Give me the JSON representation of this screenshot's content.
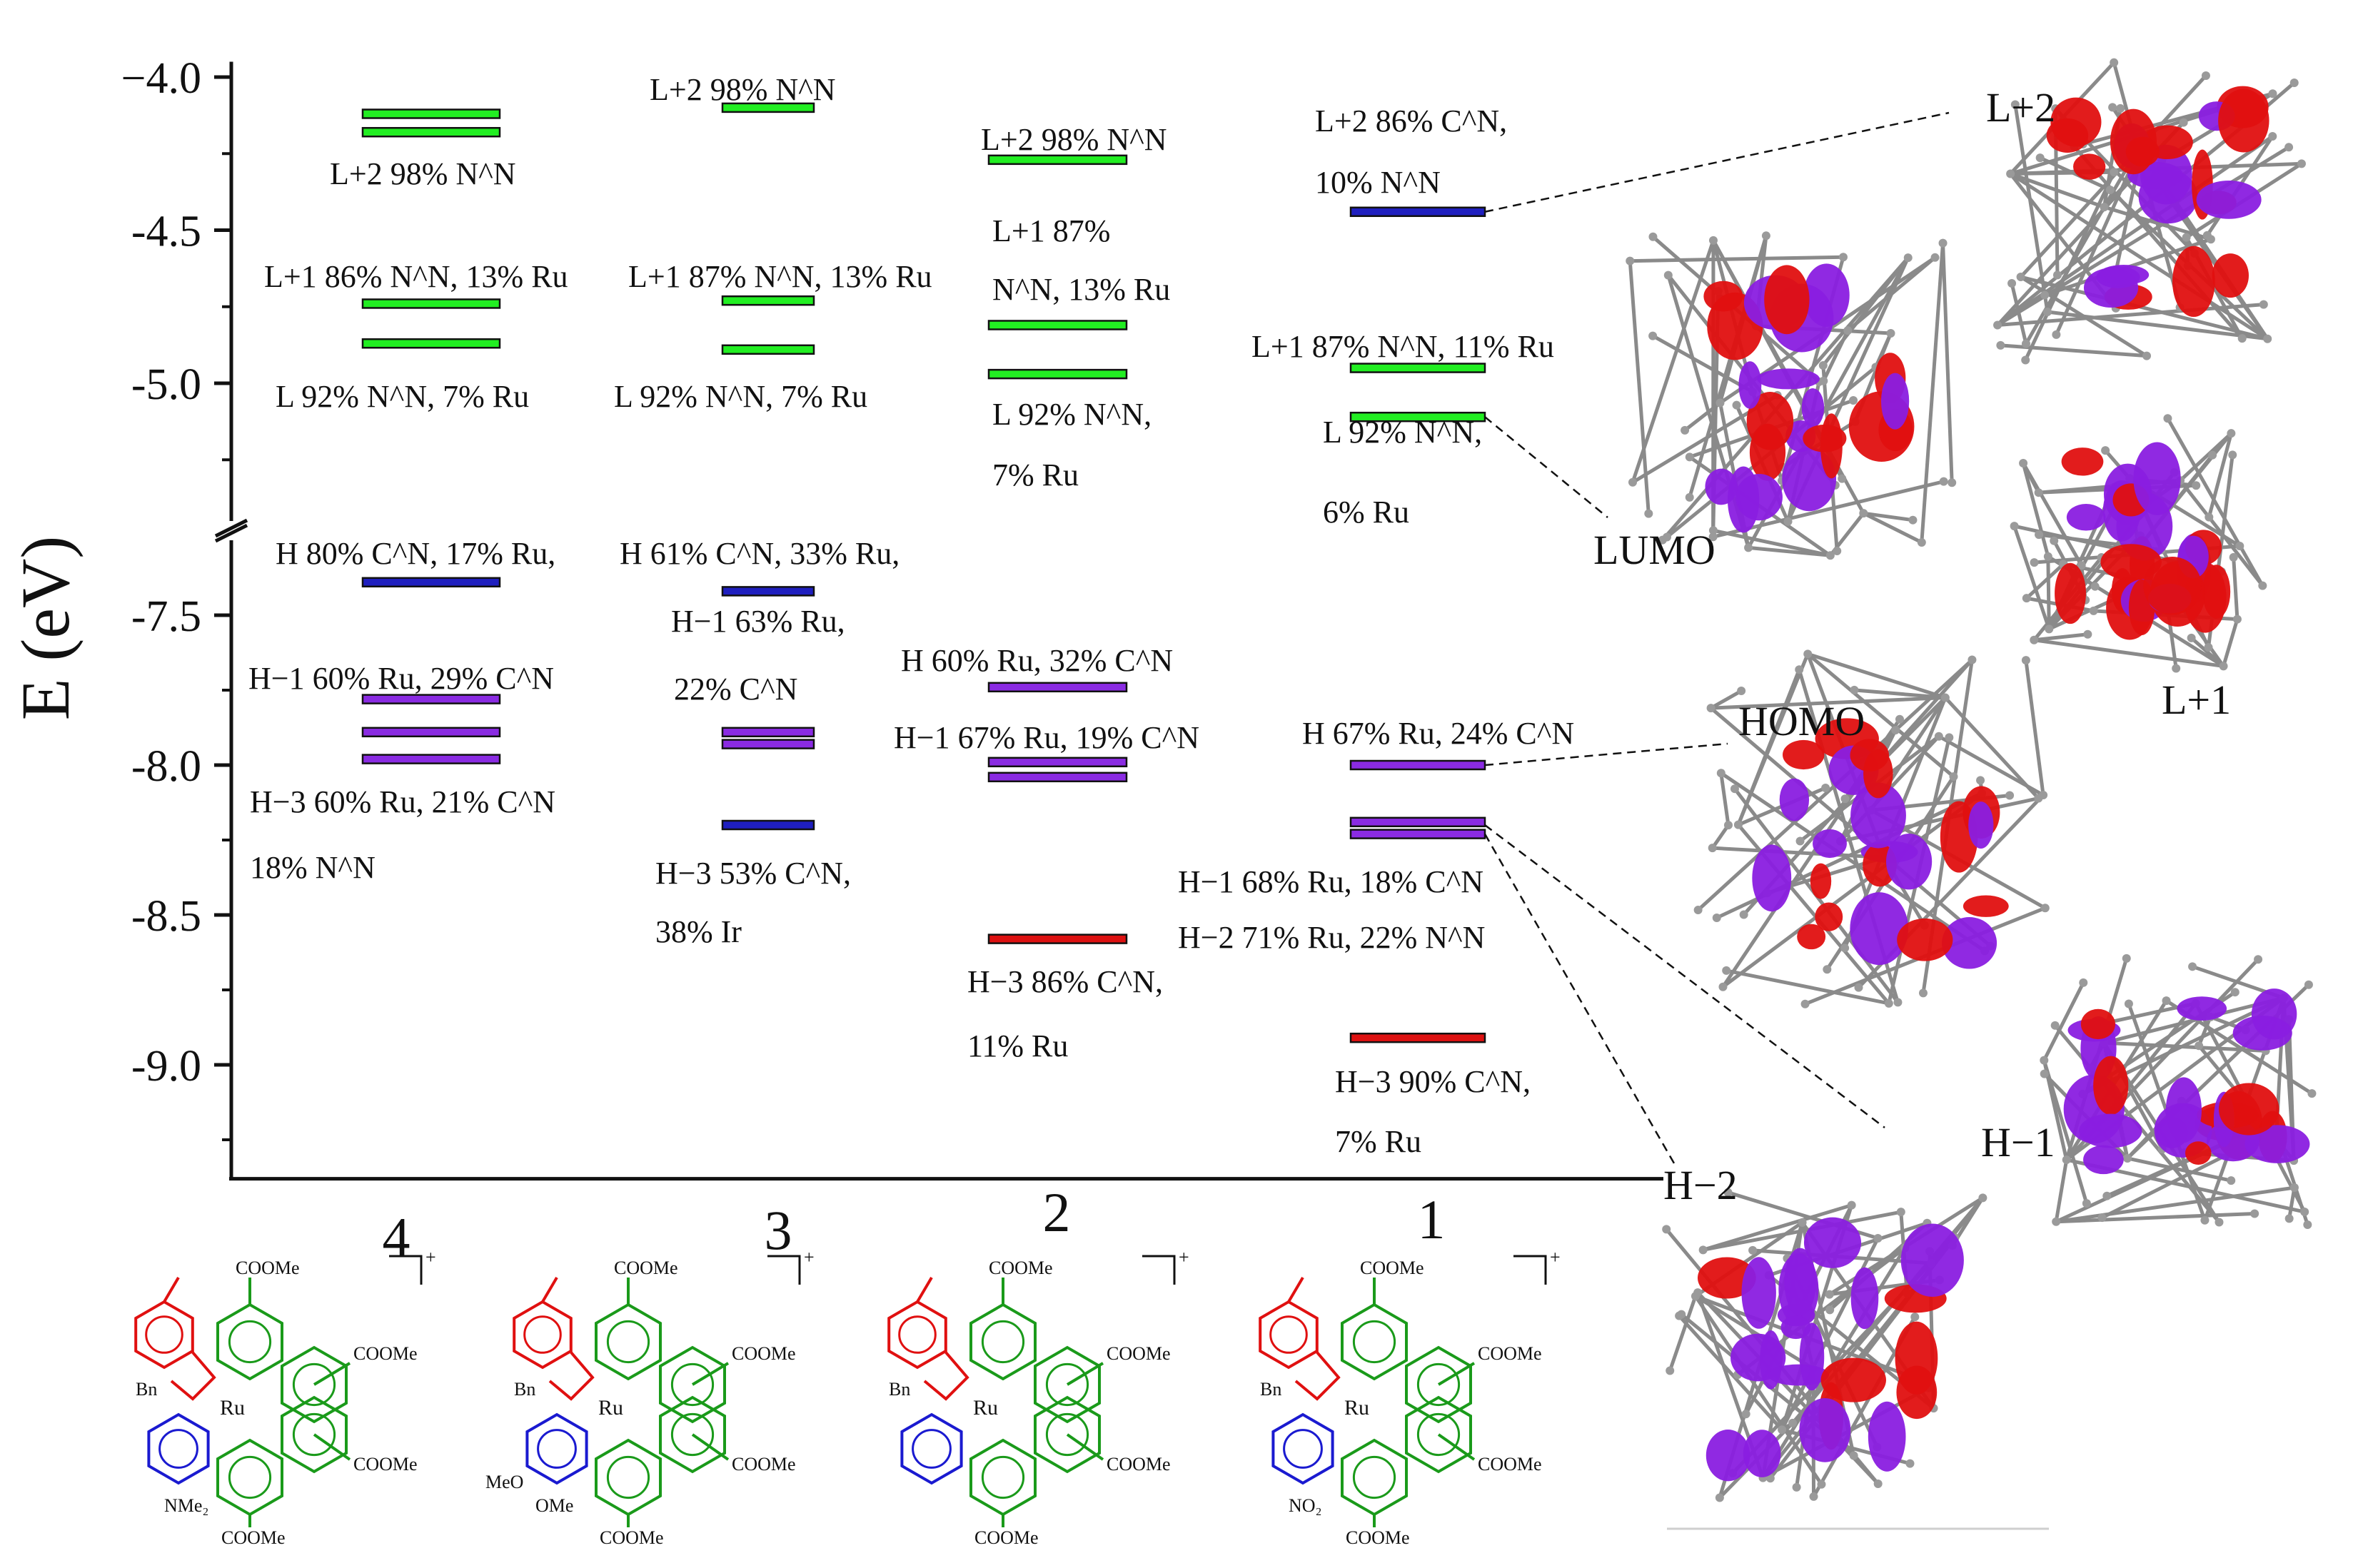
{
  "chart_data": {
    "type": "energy-level-diagram",
    "ylabel": "E (eV)",
    "ylim_upper": [
      -5.45,
      -3.95
    ],
    "ylim_lower": [
      -9.38,
      -7.25
    ],
    "y_axis_break": true,
    "yticks": [
      -4.0,
      -4.5,
      -5.0,
      -7.5,
      -8.0,
      -8.5,
      -9.0
    ],
    "ytick_labels": [
      "−4.0",
      "-4.5",
      "-5.0",
      "-7.5",
      "-8.0",
      "-8.5",
      "-9.0"
    ],
    "categories": [
      "4",
      "3",
      "2",
      "1"
    ],
    "colors": {
      "green": "#22ee22",
      "blue": "#1f1fbf",
      "purple": "#8a2be2",
      "red": "#dd1111"
    },
    "series": [
      {
        "name": "4",
        "levels": [
          {
            "energy": -4.12,
            "color": "green"
          },
          {
            "energy": -4.18,
            "color": "green"
          },
          {
            "energy": -4.74,
            "color": "green"
          },
          {
            "energy": -4.87,
            "color": "green"
          },
          {
            "energy": -7.39,
            "color": "blue"
          },
          {
            "energy": -7.78,
            "color": "purple"
          },
          {
            "energy": -7.89,
            "color": "purple"
          },
          {
            "energy": -7.98,
            "color": "purple"
          }
        ],
        "labels": [
          "L+2 98% N^N",
          "L+1 86% N^N, 13% Ru",
          "L 92% N^N, 7% Ru",
          "H 80% C^N, 17% Ru,",
          "H−1 60% Ru, 29% C^N",
          "H−3 60% Ru, 21% C^N",
          "18% N^N"
        ]
      },
      {
        "name": "3",
        "levels": [
          {
            "energy": -4.1,
            "color": "green"
          },
          {
            "energy": -4.73,
            "color": "green"
          },
          {
            "energy": -4.89,
            "color": "green"
          },
          {
            "energy": -7.42,
            "color": "blue"
          },
          {
            "energy": -7.89,
            "color": "purple"
          },
          {
            "energy": -7.93,
            "color": "purple"
          },
          {
            "energy": -8.2,
            "color": "blue"
          }
        ],
        "labels": [
          "L+2 98% N^N",
          "L+1 87% N^N, 13% Ru",
          "L 92% N^N, 7% Ru",
          "H 61% C^N, 33% Ru,",
          "H−1 63% Ru,",
          "22% C^N",
          "H−3 53% C^N,",
          "38% Ir"
        ]
      },
      {
        "name": "2",
        "levels": [
          {
            "energy": -4.27,
            "color": "green"
          },
          {
            "energy": -4.81,
            "color": "green"
          },
          {
            "energy": -4.97,
            "color": "green"
          },
          {
            "energy": -7.74,
            "color": "purple"
          },
          {
            "energy": -7.99,
            "color": "purple"
          },
          {
            "energy": -8.04,
            "color": "purple"
          },
          {
            "energy": -8.58,
            "color": "red"
          }
        ],
        "labels": [
          "L+2 98% N^N",
          "L+1 87%",
          "N^N, 13% Ru",
          "L 92% N^N,",
          "7% Ru",
          "H 60% Ru, 32% C^N",
          "H−1 67% Ru, 19% C^N",
          "H−3 86% C^N,",
          "11% Ru"
        ]
      },
      {
        "name": "1",
        "levels": [
          {
            "energy": -4.44,
            "color": "blue"
          },
          {
            "energy": -4.95,
            "color": "green"
          },
          {
            "energy": -5.11,
            "color": "green"
          },
          {
            "energy": -8.0,
            "color": "purple"
          },
          {
            "energy": -8.19,
            "color": "purple"
          },
          {
            "energy": -8.23,
            "color": "purple"
          },
          {
            "energy": -8.91,
            "color": "red"
          }
        ],
        "labels": [
          "L+2 86% C^N,",
          "10% N^N",
          "L+1 87% N^N, 11% Ru",
          "L 92% N^N,",
          "6% Ru",
          "H 67% Ru, 24% C^N",
          "H−1 68% Ru, 18% C^N",
          "H−2 71% Ru, 22% N^N",
          "H−3 90% C^N,",
          "7% Ru"
        ]
      }
    ]
  },
  "orbitals": [
    "L+2",
    "LUMO",
    "L+1",
    "HOMO",
    "H−1",
    "H−2"
  ],
  "structures": {
    "charge": "+",
    "metal": "Ru",
    "ester": "COOMe",
    "benzyl": "Bn",
    "substituents": [
      "NMe₂",
      "MeO",
      "OMe",
      "NO₂"
    ]
  }
}
